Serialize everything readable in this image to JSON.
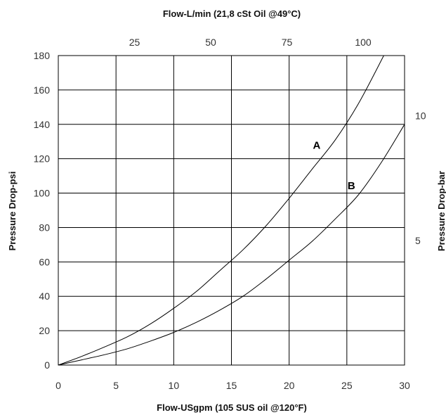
{
  "chart_data": {
    "type": "line",
    "title": "",
    "xlabel": "Flow-USgpm (105 SUS oil @120°F)",
    "ylabel": "Pressure Drop-psi",
    "x2label": "Flow-L/min (21,8 cSt Oil @49°C)",
    "y2label": "Pressure Drop-bar",
    "xlim": [
      0,
      30
    ],
    "ylim": [
      0,
      180
    ],
    "x_ticks": [
      0,
      5,
      10,
      15,
      20,
      25,
      30
    ],
    "y_ticks": [
      0,
      20,
      40,
      60,
      80,
      100,
      120,
      140,
      160,
      180
    ],
    "x2_ticks": [
      25,
      50,
      75,
      100
    ],
    "y2_ticks": [
      5,
      10
    ],
    "grid": true,
    "series": [
      {
        "name": "A",
        "x": [
          0,
          2,
          4,
          6,
          8,
          10,
          12,
          14,
          16,
          18,
          20,
          22,
          24,
          26,
          28.2
        ],
        "y": [
          0,
          5,
          10.5,
          16.5,
          24,
          33,
          43,
          55,
          67,
          81,
          97,
          114,
          131,
          152,
          180
        ]
      },
      {
        "name": "B",
        "x": [
          0,
          2,
          4,
          6,
          8,
          10,
          12,
          14,
          16,
          18,
          20,
          22,
          24,
          26,
          28,
          30
        ],
        "y": [
          0,
          3,
          6,
          9.5,
          14,
          19,
          25,
          32,
          40,
          50,
          61,
          72,
          85,
          99,
          118,
          140
        ]
      }
    ]
  }
}
